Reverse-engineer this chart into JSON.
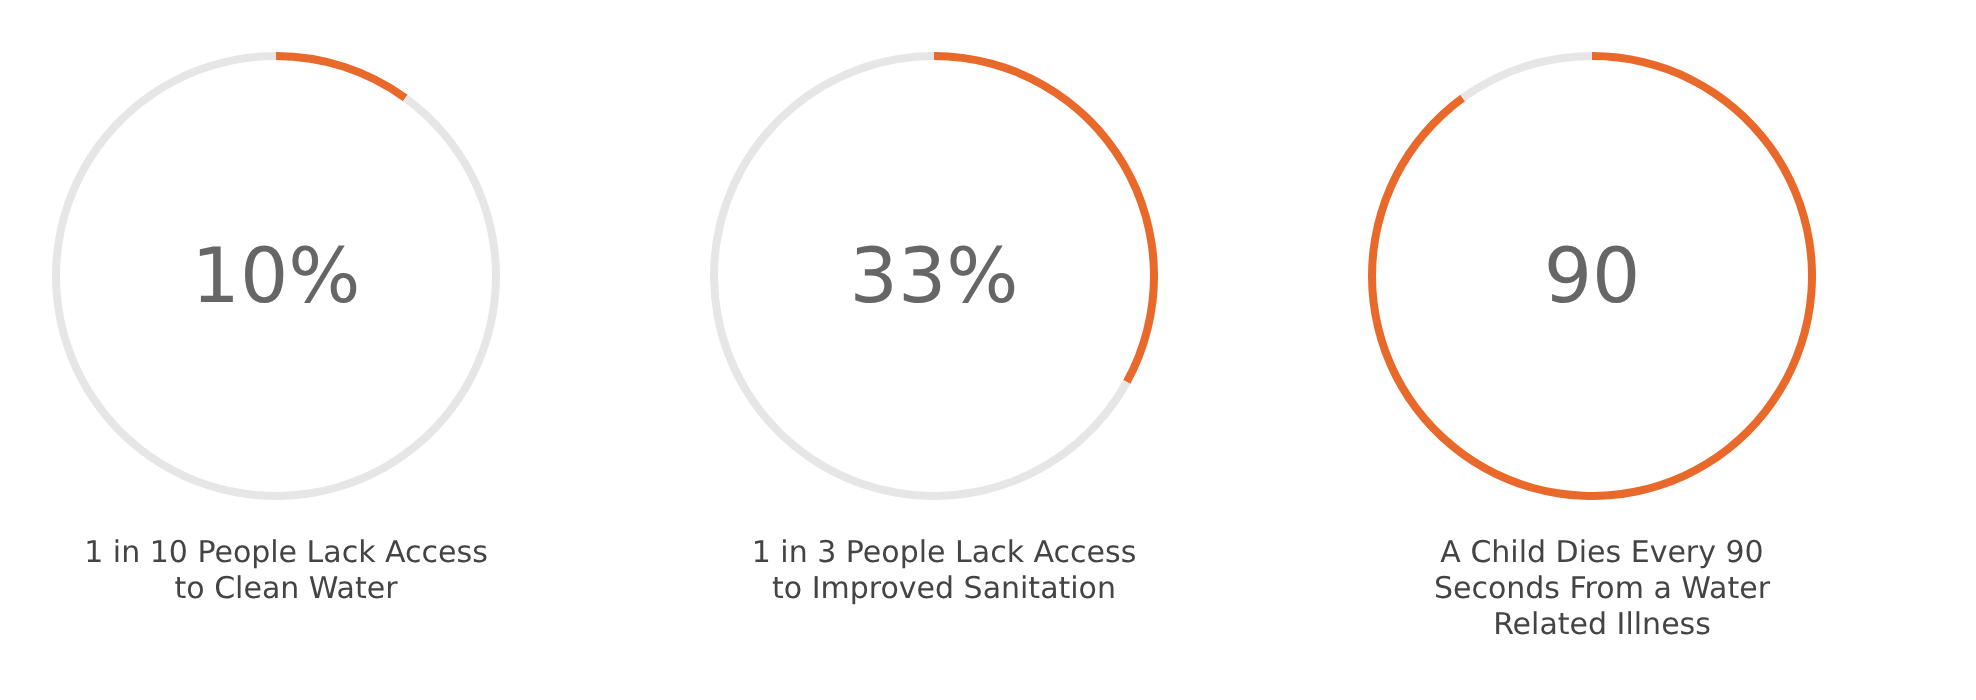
{
  "chart_data": [
    {
      "type": "donut",
      "title": "1 in 10 People Lack Access\nto Clean Water",
      "categories": [
        null,
        null
      ],
      "values": [
        10,
        90
      ],
      "colors": [
        "#e8692a",
        "#e6e6e6"
      ],
      "annotations": [
        "10%"
      ]
    },
    {
      "type": "donut",
      "title": "1 in 3 People Lack Access\nto Improved Sanitation",
      "categories": [
        null,
        null
      ],
      "values": [
        33,
        67
      ],
      "colors": [
        "#e8692a",
        "#e6e6e6"
      ],
      "annotations": [
        "33%"
      ]
    },
    {
      "type": "donut",
      "title": "A Child Dies Every 90\nSeconds From a Water\nRelated Illness",
      "categories": [
        null,
        null
      ],
      "values": [
        90,
        10
      ],
      "colors": [
        "#e8692a",
        "#e6e6e6"
      ],
      "annotations": [
        "90"
      ]
    }
  ]
}
